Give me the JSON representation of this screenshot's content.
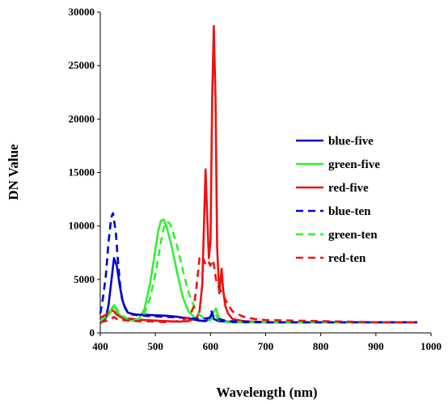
{
  "chart_data": {
    "type": "line",
    "title": "",
    "xlabel": "Wavelength (nm)",
    "ylabel": "DN Value",
    "xlim": [
      400,
      1000
    ],
    "ylim": [
      0,
      30000
    ],
    "xticks": [
      400,
      500,
      600,
      700,
      800,
      900,
      1000
    ],
    "yticks": [
      0,
      5000,
      10000,
      15000,
      20000,
      25000,
      30000
    ],
    "grid": false,
    "legend_position": "right",
    "series": [
      {
        "name": "blue-five",
        "color": "#0000cc",
        "dash": "solid",
        "x": [
          400,
          410,
          415,
          420,
          425,
          430,
          435,
          440,
          445,
          450,
          460,
          470,
          480,
          500,
          520,
          540,
          560,
          580,
          590,
          598,
          602,
          606,
          615,
          630,
          650,
          700,
          800,
          900,
          975
        ],
        "y": [
          900,
          1400,
          2600,
          4800,
          7000,
          6300,
          4500,
          3100,
          2300,
          1900,
          1750,
          1700,
          1700,
          1650,
          1600,
          1500,
          1350,
          1150,
          1100,
          1300,
          1800,
          1300,
          1100,
          1050,
          1000,
          1000,
          1000,
          1000,
          1000
        ]
      },
      {
        "name": "green-five",
        "color": "#33ee33",
        "dash": "solid",
        "x": [
          400,
          410,
          420,
          425,
          430,
          440,
          450,
          460,
          470,
          480,
          490,
          500,
          505,
          510,
          515,
          520,
          530,
          540,
          550,
          560,
          570,
          580,
          590,
          600,
          605,
          610,
          615,
          630,
          700,
          800,
          975
        ],
        "y": [
          1000,
          1400,
          2000,
          2600,
          2000,
          1400,
          1200,
          1150,
          1300,
          2200,
          4500,
          7800,
          9500,
          10500,
          10600,
          10000,
          8000,
          5500,
          3300,
          2000,
          1500,
          1200,
          1100,
          1200,
          1900,
          2300,
          1400,
          1000,
          1000,
          1000,
          1000
        ]
      },
      {
        "name": "red-five",
        "color": "#ee1111",
        "dash": "solid",
        "x": [
          400,
          410,
          415,
          420,
          425,
          430,
          440,
          460,
          480,
          500,
          520,
          540,
          560,
          575,
          580,
          585,
          588,
          591,
          594,
          597,
          600,
          603,
          606,
          609,
          612,
          616,
          618,
          620,
          623,
          627,
          632,
          640,
          660,
          700,
          800,
          900,
          975
        ],
        "y": [
          1400,
          1700,
          1900,
          2200,
          2000,
          1700,
          1400,
          1300,
          1200,
          1150,
          1100,
          1050,
          1100,
          1400,
          2000,
          4500,
          10000,
          15300,
          11000,
          7000,
          8500,
          22000,
          28700,
          22000,
          8000,
          3700,
          4800,
          6000,
          4000,
          2500,
          1800,
          1300,
          1100,
          1000,
          1000,
          1000,
          1000
        ]
      },
      {
        "name": "blue-ten",
        "color": "#0000cc",
        "dash": "dashed",
        "x": [
          400,
          405,
          410,
          415,
          420,
          423,
          428,
          432,
          436,
          440,
          445,
          450,
          460,
          470,
          480,
          500,
          540,
          580,
          598,
          602,
          606,
          630,
          700,
          800,
          975
        ],
        "y": [
          1800,
          3300,
          5300,
          8500,
          10800,
          11200,
          9500,
          6800,
          4500,
          3000,
          2400,
          1900,
          1700,
          1650,
          1600,
          1550,
          1450,
          1300,
          1400,
          2000,
          1400,
          1100,
          1000,
          1000,
          1000
        ]
      },
      {
        "name": "green-ten",
        "color": "#33ee33",
        "dash": "dashed",
        "x": [
          400,
          410,
          420,
          425,
          430,
          440,
          450,
          460,
          470,
          480,
          490,
          500,
          510,
          515,
          520,
          525,
          530,
          540,
          550,
          560,
          570,
          580,
          590,
          600,
          608,
          615,
          630,
          700,
          800,
          975
        ],
        "y": [
          1100,
          1500,
          2200,
          2700,
          2200,
          1600,
          1300,
          1200,
          1300,
          1800,
          3200,
          5500,
          8500,
          9800,
          10400,
          10300,
          9800,
          8000,
          5800,
          3800,
          2500,
          1700,
          1300,
          1200,
          1800,
          1200,
          1000,
          1000,
          1000,
          1000
        ]
      },
      {
        "name": "red-ten",
        "color": "#ee1111",
        "dash": "dashed",
        "x": [
          400,
          410,
          420,
          425,
          430,
          440,
          460,
          480,
          500,
          520,
          540,
          560,
          570,
          575,
          580,
          585,
          590,
          595,
          600,
          605,
          610,
          615,
          620,
          630,
          640,
          660,
          680,
          700,
          800,
          900,
          975
        ],
        "y": [
          1000,
          1100,
          1300,
          1500,
          1300,
          1200,
          1100,
          1100,
          1050,
          1000,
          1100,
          1400,
          2500,
          4500,
          7000,
          7200,
          6500,
          6800,
          6300,
          6800,
          5000,
          4200,
          3800,
          2800,
          2000,
          1500,
          1300,
          1200,
          1100,
          1000,
          1000
        ]
      }
    ]
  }
}
